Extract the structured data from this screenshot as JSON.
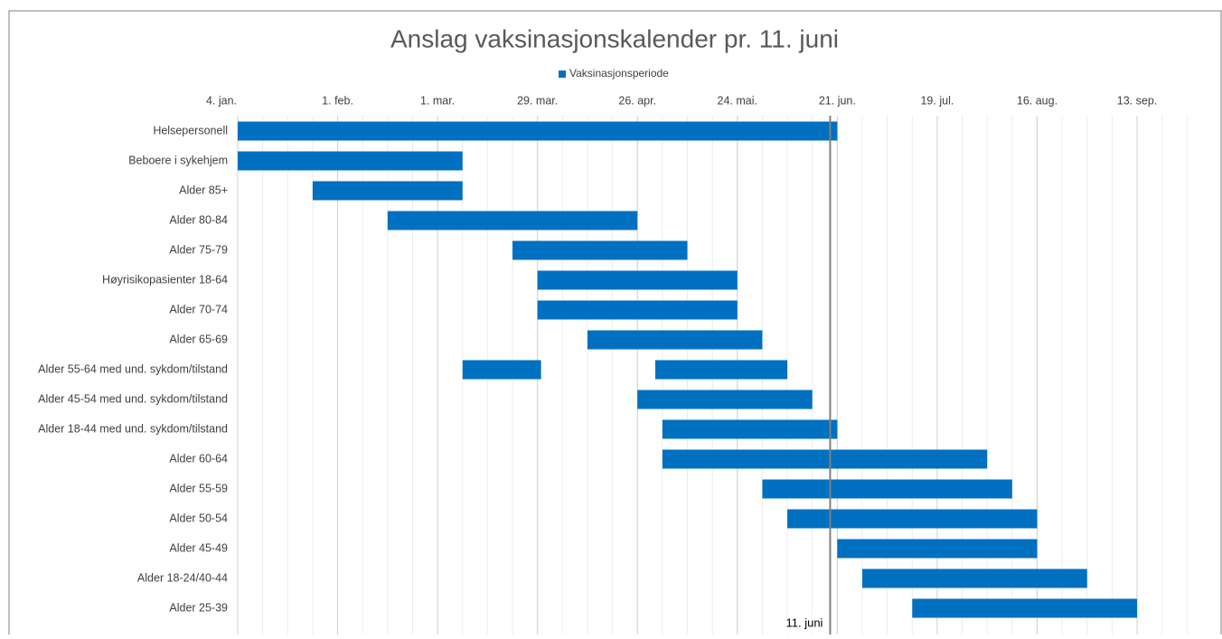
{
  "chart_data": {
    "type": "gantt",
    "title": "Anslag vaksinasjonskalender pr. 11. juni",
    "categories": [
      "Helsepersonell",
      "Beboere i sykehjem",
      "Alder 85+",
      "Alder 80-84",
      "Alder 75-79",
      "Høyrisikopasienter 18-64",
      "Alder 70-74",
      "Alder 65-69",
      "Alder 55-64 med und. sykdom/tilstand",
      "Alder 45-54 med und. sykdom/tilstand",
      "Alder 18-44 med und. sykdom/tilstand",
      "Alder 60-64",
      "Alder 55-59",
      "Alder 50-54",
      "Alder 45-49",
      "Alder 18-24/40-44",
      "Alder 25-39"
    ],
    "series": [
      {
        "name": "Vaksinasjonsperiode",
        "color": "#0070c0",
        "values": [
          [
            [
              4,
              172
            ]
          ],
          [
            [
              4,
              67
            ]
          ],
          [
            [
              25,
              67
            ]
          ],
          [
            [
              46,
              116
            ]
          ],
          [
            [
              81,
              130
            ]
          ],
          [
            [
              88,
              144
            ]
          ],
          [
            [
              88,
              144
            ]
          ],
          [
            [
              102,
              151
            ]
          ],
          [
            [
              67,
              89
            ],
            [
              121,
              158
            ]
          ],
          [
            [
              116,
              165
            ]
          ],
          [
            [
              123,
              172
            ]
          ],
          [
            [
              123,
              214
            ]
          ],
          [
            [
              151,
              221
            ]
          ],
          [
            [
              158,
              228
            ]
          ],
          [
            [
              172,
              228
            ]
          ],
          [
            [
              179,
              242
            ]
          ],
          [
            [
              193,
              256
            ]
          ]
        ]
      }
    ],
    "xlim": [
      4,
      276
    ],
    "xticks": [
      {
        "value": 4,
        "label": "4. jan."
      },
      {
        "value": 32,
        "label": "1. feb."
      },
      {
        "value": 60,
        "label": "1. mar."
      },
      {
        "value": 88,
        "label": "29. mar."
      },
      {
        "value": 116,
        "label": "26. apr."
      },
      {
        "value": 144,
        "label": "24. mai."
      },
      {
        "value": 172,
        "label": "21. jun."
      },
      {
        "value": 200,
        "label": "19. jul."
      },
      {
        "value": 228,
        "label": "16. aug."
      },
      {
        "value": 256,
        "label": "13. sep."
      }
    ],
    "grid": true,
    "legend": "top",
    "annotation": {
      "text": "11. juni",
      "x": 170
    }
  }
}
